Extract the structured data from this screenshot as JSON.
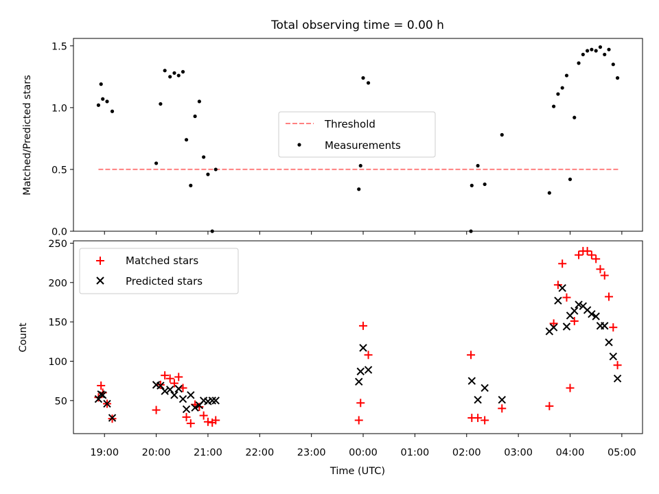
{
  "chart_data": [
    {
      "type": "scatter",
      "title": "Total observing time = 0.00 h",
      "xlabel": "",
      "ylabel": "Matched/Predicted stars",
      "xlim": [
        "18:24",
        "05:24"
      ],
      "ylim": [
        0,
        1.56
      ],
      "yticks": [
        "0.0",
        "0.5",
        "1.0",
        "1.5"
      ],
      "ytick_values": [
        0,
        0.5,
        1.0,
        1.5
      ],
      "legend_position": "center",
      "threshold": {
        "name": "Threshold",
        "value": 0.5,
        "x_start": "18:53",
        "x_end": "04:57",
        "color": "#ff8080",
        "style": "dashed"
      },
      "series": [
        {
          "name": "Measurements",
          "color": "#000000",
          "marker": "dot",
          "points": [
            [
              "18:53",
              1.02
            ],
            [
              "18:56",
              1.19
            ],
            [
              "18:58",
              1.07
            ],
            [
              "19:03",
              1.05
            ],
            [
              "19:09",
              0.97
            ],
            [
              "20:00",
              0.55
            ],
            [
              "20:05",
              1.03
            ],
            [
              "20:10",
              1.3
            ],
            [
              "20:16",
              1.25
            ],
            [
              "20:21",
              1.28
            ],
            [
              "20:26",
              1.26
            ],
            [
              "20:31",
              1.29
            ],
            [
              "20:35",
              0.74
            ],
            [
              "20:40",
              0.37
            ],
            [
              "20:45",
              0.93
            ],
            [
              "20:50",
              1.05
            ],
            [
              "20:55",
              0.6
            ],
            [
              "21:00",
              0.46
            ],
            [
              "21:05",
              0.0
            ],
            [
              "21:09",
              0.5
            ],
            [
              "23:55",
              0.34
            ],
            [
              "23:57",
              0.53
            ],
            [
              "00:00",
              1.24
            ],
            [
              "00:06",
              1.2
            ],
            [
              "02:05",
              0.0
            ],
            [
              "02:06",
              0.37
            ],
            [
              "02:13",
              0.53
            ],
            [
              "02:21",
              0.38
            ],
            [
              "02:41",
              0.78
            ],
            [
              "03:36",
              0.31
            ],
            [
              "03:41",
              1.01
            ],
            [
              "03:46",
              1.11
            ],
            [
              "03:51",
              1.16
            ],
            [
              "03:56",
              1.26
            ],
            [
              "04:00",
              0.42
            ],
            [
              "04:05",
              0.92
            ],
            [
              "04:10",
              1.36
            ],
            [
              "04:15",
              1.43
            ],
            [
              "04:20",
              1.46
            ],
            [
              "04:25",
              1.47
            ],
            [
              "04:30",
              1.46
            ],
            [
              "04:35",
              1.49
            ],
            [
              "04:40",
              1.43
            ],
            [
              "04:45",
              1.47
            ],
            [
              "04:50",
              1.35
            ],
            [
              "04:55",
              1.24
            ]
          ]
        }
      ]
    },
    {
      "type": "scatter",
      "title": "",
      "xlabel": "Time (UTC)",
      "ylabel": "Count",
      "xlim": [
        "18:24",
        "05:24"
      ],
      "ylim": [
        8,
        253
      ],
      "yticks": [
        "50",
        "100",
        "150",
        "200",
        "250"
      ],
      "ytick_values": [
        50,
        100,
        150,
        200,
        250
      ],
      "xticks": [
        "19:00",
        "20:00",
        "21:00",
        "22:00",
        "23:00",
        "00:00",
        "01:00",
        "02:00",
        "03:00",
        "04:00",
        "05:00"
      ],
      "legend_position": "top-left",
      "series": [
        {
          "name": "Matched stars",
          "color": "#ff0000",
          "marker": "plus",
          "points": [
            [
              "18:53",
              54
            ],
            [
              "18:56",
              69
            ],
            [
              "18:58",
              60
            ],
            [
              "19:03",
              46
            ],
            [
              "19:09",
              27
            ],
            [
              "20:00",
              38
            ],
            [
              "20:05",
              70
            ],
            [
              "20:10",
              82
            ],
            [
              "20:16",
              78
            ],
            [
              "20:21",
              72
            ],
            [
              "20:26",
              80
            ],
            [
              "20:31",
              66
            ],
            [
              "20:35",
              29
            ],
            [
              "20:40",
              21
            ],
            [
              "20:45",
              45
            ],
            [
              "20:50",
              42
            ],
            [
              "20:55",
              31
            ],
            [
              "21:00",
              23
            ],
            [
              "21:05",
              22
            ],
            [
              "21:09",
              25
            ],
            [
              "23:55",
              25
            ],
            [
              "23:57",
              47
            ],
            [
              "00:00",
              145
            ],
            [
              "00:06",
              108
            ],
            [
              "02:05",
              108
            ],
            [
              "02:06",
              28
            ],
            [
              "02:13",
              28
            ],
            [
              "02:21",
              25
            ],
            [
              "02:41",
              40
            ],
            [
              "03:36",
              43
            ],
            [
              "03:41",
              148
            ],
            [
              "03:46",
              197
            ],
            [
              "03:51",
              224
            ],
            [
              "03:56",
              181
            ],
            [
              "04:00",
              66
            ],
            [
              "04:05",
              151
            ],
            [
              "04:10",
              235
            ],
            [
              "04:15",
              240
            ],
            [
              "04:20",
              240
            ],
            [
              "04:25",
              235
            ],
            [
              "04:30",
              230
            ],
            [
              "04:35",
              217
            ],
            [
              "04:40",
              209
            ],
            [
              "04:45",
              182
            ],
            [
              "04:50",
              143
            ],
            [
              "04:55",
              95
            ]
          ]
        },
        {
          "name": "Predicted stars",
          "color": "#000000",
          "marker": "x",
          "points": [
            [
              "18:53",
              52
            ],
            [
              "18:56",
              58
            ],
            [
              "18:58",
              57
            ],
            [
              "19:03",
              46
            ],
            [
              "19:09",
              28
            ],
            [
              "20:00",
              70
            ],
            [
              "20:05",
              69
            ],
            [
              "20:10",
              62
            ],
            [
              "20:16",
              64
            ],
            [
              "20:21",
              57
            ],
            [
              "20:26",
              65
            ],
            [
              "20:31",
              52
            ],
            [
              "20:35",
              39
            ],
            [
              "20:40",
              57
            ],
            [
              "20:45",
              41
            ],
            [
              "20:50",
              44
            ],
            [
              "20:55",
              50
            ],
            [
              "21:00",
              49
            ],
            [
              "21:05",
              50
            ],
            [
              "21:09",
              50
            ],
            [
              "23:55",
              74
            ],
            [
              "23:57",
              87
            ],
            [
              "00:00",
              117
            ],
            [
              "00:06",
              89
            ],
            [
              "02:06",
              75
            ],
            [
              "02:13",
              51
            ],
            [
              "02:21",
              66
            ],
            [
              "02:41",
              51
            ],
            [
              "03:36",
              138
            ],
            [
              "03:41",
              143
            ],
            [
              "03:46",
              177
            ],
            [
              "03:51",
              193
            ],
            [
              "03:56",
              144
            ],
            [
              "04:00",
              158
            ],
            [
              "04:05",
              164
            ],
            [
              "04:10",
              172
            ],
            [
              "04:15",
              170
            ],
            [
              "04:20",
              165
            ],
            [
              "04:25",
              160
            ],
            [
              "04:30",
              157
            ],
            [
              "04:35",
              145
            ],
            [
              "04:40",
              145
            ],
            [
              "04:45",
              124
            ],
            [
              "04:50",
              106
            ],
            [
              "04:55",
              78
            ]
          ]
        }
      ]
    }
  ]
}
